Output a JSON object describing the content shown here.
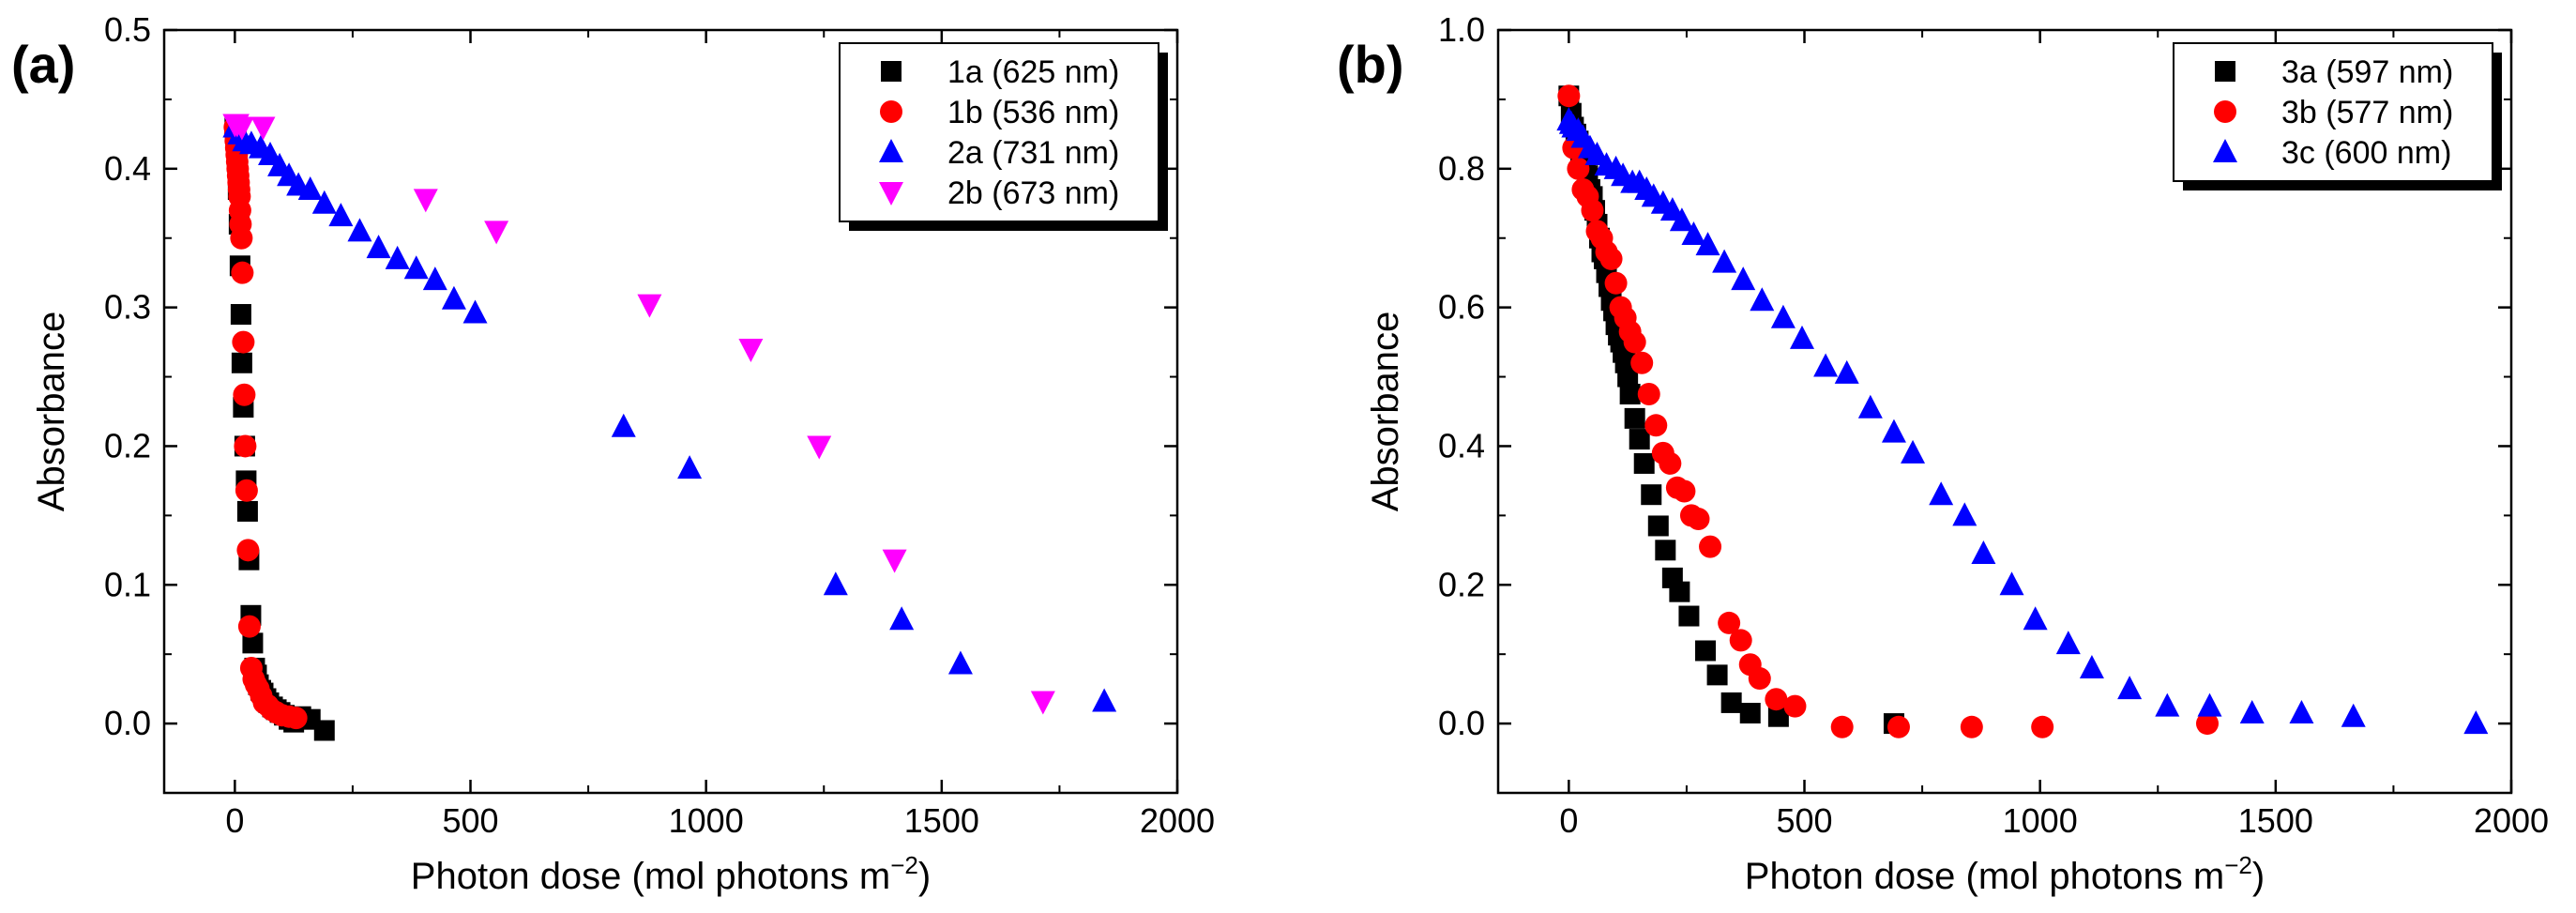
{
  "chart_data": [
    {
      "type": "scatter",
      "panel_label": "(a)",
      "xlabel": "Photon dose (mol photons m",
      "xlabel_sup": "−2",
      "xlabel_close": ")",
      "ylabel": "Absorbance",
      "xlim": [
        -150,
        2000
      ],
      "ylim": [
        -0.05,
        0.5
      ],
      "xticks": [
        0,
        500,
        1000,
        1500,
        2000
      ],
      "yticks": [
        0.0,
        0.1,
        0.2,
        0.3,
        0.4,
        0.5
      ],
      "xtick_labels": [
        "0",
        "500",
        "1000",
        "1500",
        "2000"
      ],
      "ytick_labels": [
        "0.0",
        "0.1",
        "0.2",
        "0.3",
        "0.4",
        "0.5"
      ],
      "legend_position": "top-right",
      "series": [
        {
          "name": "1a (625 nm)",
          "marker": "square",
          "color": "#000000",
          "x": [
            0,
            3,
            5,
            7,
            9,
            11,
            13,
            15,
            18,
            21,
            24,
            27,
            30,
            34,
            38,
            42,
            46,
            50,
            55,
            60,
            66,
            72,
            80,
            88,
            96,
            105,
            115,
            125,
            140,
            160,
            190
          ],
          "y": [
            0.43,
            0.42,
            0.405,
            0.385,
            0.36,
            0.33,
            0.295,
            0.26,
            0.228,
            0.2,
            0.175,
            0.153,
            0.118,
            0.078,
            0.058,
            0.04,
            0.035,
            0.028,
            0.024,
            0.022,
            0.018,
            0.015,
            0.012,
            0.01,
            0.008,
            0.006,
            0.003,
            0.001,
            0.005,
            0.003,
            -0.005
          ]
        },
        {
          "name": "1b (536 nm)",
          "marker": "circle",
          "color": "#ff0000",
          "x": [
            0,
            1,
            2,
            3,
            4,
            5,
            6,
            7,
            8,
            9,
            10,
            11,
            12,
            14,
            16,
            18,
            20,
            22,
            25,
            28,
            31,
            35,
            40,
            45,
            50,
            56,
            62,
            70,
            78,
            88,
            100,
            115,
            130
          ],
          "y": [
            0.43,
            0.425,
            0.42,
            0.415,
            0.41,
            0.405,
            0.4,
            0.395,
            0.39,
            0.385,
            0.38,
            0.37,
            0.36,
            0.35,
            0.325,
            0.275,
            0.237,
            0.2,
            0.168,
            0.125,
            0.07,
            0.04,
            0.032,
            0.028,
            0.025,
            0.02,
            0.015,
            0.013,
            0.01,
            0.008,
            0.006,
            0.005,
            0.004
          ]
        },
        {
          "name": "2a (731 nm)",
          "marker": "triangle-up",
          "color": "#0000ff",
          "x": [
            0,
            10,
            20,
            35,
            55,
            75,
            95,
            115,
            135,
            160,
            190,
            225,
            265,
            305,
            345,
            385,
            425,
            465,
            510,
            825,
            965,
            1275,
            1415,
            1540,
            1845
          ],
          "y": [
            0.43,
            0.425,
            0.42,
            0.418,
            0.415,
            0.41,
            0.402,
            0.395,
            0.388,
            0.385,
            0.375,
            0.366,
            0.355,
            0.343,
            0.335,
            0.328,
            0.32,
            0.306,
            0.296,
            0.214,
            0.184,
            0.1,
            0.075,
            0.043,
            0.016
          ]
        },
        {
          "name": "2b (673 nm)",
          "marker": "triangle-down",
          "color": "#ff00ff",
          "x": [
            0,
            5,
            15,
            60,
            405,
            555,
            880,
            1095,
            1240,
            1400,
            1715
          ],
          "y": [
            0.432,
            0.432,
            0.43,
            0.43,
            0.378,
            0.355,
            0.302,
            0.27,
            0.2,
            0.118,
            0.016
          ]
        }
      ]
    },
    {
      "type": "scatter",
      "panel_label": "(b)",
      "xlabel": "Photon dose (mol photons m",
      "xlabel_sup": "−2",
      "xlabel_close": ")",
      "ylabel": "Absorbance",
      "xlim": [
        -150,
        2000
      ],
      "ylim": [
        -0.1,
        1.0
      ],
      "xticks": [
        0,
        500,
        1000,
        1500,
        2000
      ],
      "yticks": [
        0.0,
        0.2,
        0.4,
        0.6,
        0.8,
        1.0
      ],
      "xtick_labels": [
        "0",
        "500",
        "1000",
        "1500",
        "2000"
      ],
      "ytick_labels": [
        "0.0",
        "0.2",
        "0.4",
        "0.6",
        "0.8",
        "1.0"
      ],
      "legend_position": "top-right",
      "series": [
        {
          "name": "3a (597 nm)",
          "marker": "square",
          "color": "#000000",
          "x": [
            0,
            5,
            10,
            15,
            20,
            25,
            30,
            35,
            40,
            45,
            50,
            55,
            60,
            65,
            70,
            75,
            80,
            85,
            90,
            95,
            100,
            105,
            110,
            115,
            120,
            125,
            130,
            140,
            150,
            160,
            175,
            190,
            205,
            220,
            235,
            255,
            290,
            315,
            345,
            385,
            445,
            690
          ],
          "y": [
            0.905,
            0.88,
            0.86,
            0.85,
            0.84,
            0.82,
            0.81,
            0.8,
            0.79,
            0.77,
            0.76,
            0.74,
            0.72,
            0.7,
            0.68,
            0.67,
            0.65,
            0.63,
            0.61,
            0.595,
            0.575,
            0.56,
            0.55,
            0.535,
            0.52,
            0.5,
            0.475,
            0.44,
            0.41,
            0.375,
            0.33,
            0.285,
            0.25,
            0.21,
            0.19,
            0.155,
            0.105,
            0.07,
            0.03,
            0.015,
            0.01,
            0.0
          ]
        },
        {
          "name": "3b (577 nm)",
          "marker": "circle",
          "color": "#ff0000",
          "x": [
            0,
            10,
            20,
            30,
            40,
            50,
            60,
            70,
            80,
            90,
            100,
            110,
            120,
            130,
            140,
            155,
            170,
            185,
            200,
            215,
            230,
            245,
            260,
            275,
            300,
            340,
            365,
            385,
            405,
            440,
            480,
            580,
            700,
            855,
            1005,
            1355
          ],
          "y": [
            0.905,
            0.83,
            0.8,
            0.77,
            0.76,
            0.74,
            0.71,
            0.7,
            0.68,
            0.67,
            0.635,
            0.6,
            0.585,
            0.565,
            0.55,
            0.52,
            0.475,
            0.43,
            0.39,
            0.375,
            0.34,
            0.335,
            0.3,
            0.295,
            0.255,
            0.145,
            0.12,
            0.085,
            0.065,
            0.035,
            0.025,
            -0.005,
            -0.005,
            -0.005,
            -0.005,
            0.0
          ]
        },
        {
          "name": "3c (600 nm)",
          "marker": "triangle-up",
          "color": "#0000ff",
          "x": [
            0,
            5,
            10,
            20,
            30,
            45,
            60,
            80,
            100,
            115,
            135,
            150,
            165,
            180,
            200,
            220,
            240,
            265,
            295,
            330,
            370,
            410,
            455,
            495,
            545,
            590,
            640,
            690,
            730,
            790,
            840,
            880,
            940,
            990,
            1060,
            1110,
            1190,
            1270,
            1360,
            1450,
            1555,
            1665,
            1925
          ],
          "y": [
            0.87,
            0.865,
            0.86,
            0.855,
            0.845,
            0.83,
            0.82,
            0.805,
            0.8,
            0.79,
            0.78,
            0.78,
            0.77,
            0.76,
            0.75,
            0.74,
            0.725,
            0.705,
            0.69,
            0.665,
            0.64,
            0.61,
            0.585,
            0.555,
            0.515,
            0.505,
            0.455,
            0.42,
            0.39,
            0.33,
            0.3,
            0.245,
            0.2,
            0.15,
            0.115,
            0.08,
            0.05,
            0.025,
            0.025,
            0.015,
            0.015,
            0.01,
            0.0
          ]
        }
      ]
    }
  ]
}
